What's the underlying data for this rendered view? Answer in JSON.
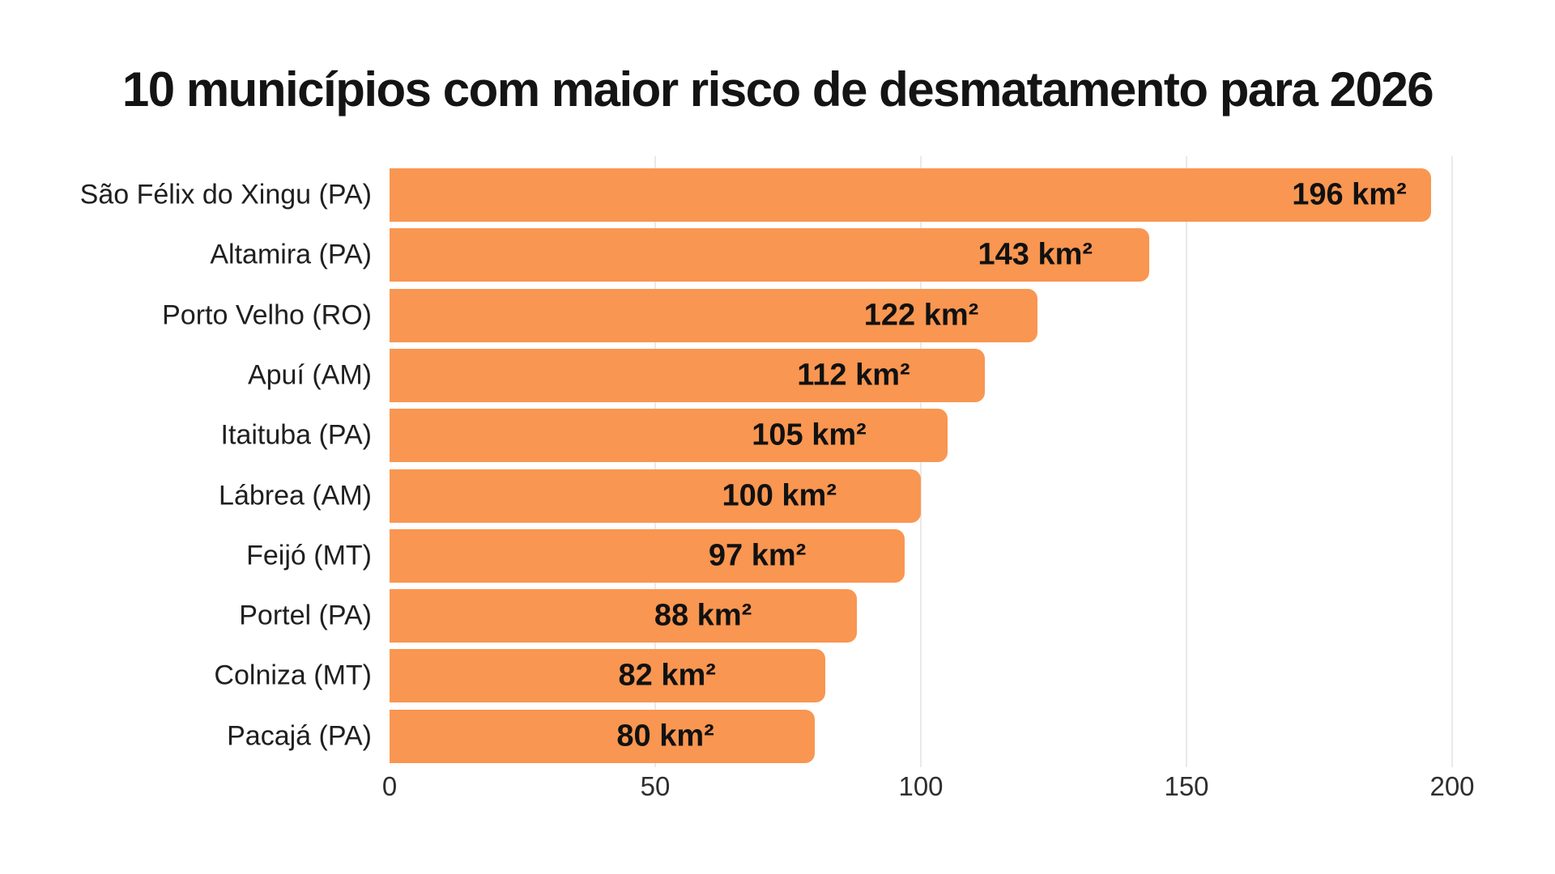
{
  "chart_data": {
    "type": "bar",
    "orientation": "horizontal",
    "title": "10 municípios com maior risco de desmatamento para 2026",
    "categories": [
      "São Félix do Xingu (PA)",
      "Altamira (PA)",
      "Porto Velho (RO)",
      "Apuí (AM)",
      "Itaituba (PA)",
      "Lábrea (AM)",
      "Feijó (MT)",
      "Portel (PA)",
      "Colniza (MT)",
      "Pacajá (PA)"
    ],
    "values": [
      196,
      143,
      122,
      112,
      105,
      100,
      97,
      88,
      82,
      80
    ],
    "value_labels": [
      "196 km²",
      "143 km²",
      "122 km²",
      "112 km²",
      "105 km²",
      "100 km²",
      "97 km²",
      "88 km²",
      "82 km²",
      "80 km²"
    ],
    "unit": "km²",
    "xlabel": "",
    "ylabel": "",
    "xlim": [
      0,
      200
    ],
    "x_ticks": [
      0,
      50,
      100,
      150,
      200
    ],
    "grid": "vertical-light",
    "legend": "none",
    "bar_color": "#f99651",
    "background_color": "#ffffff",
    "text_color": "#1f1f1f"
  }
}
